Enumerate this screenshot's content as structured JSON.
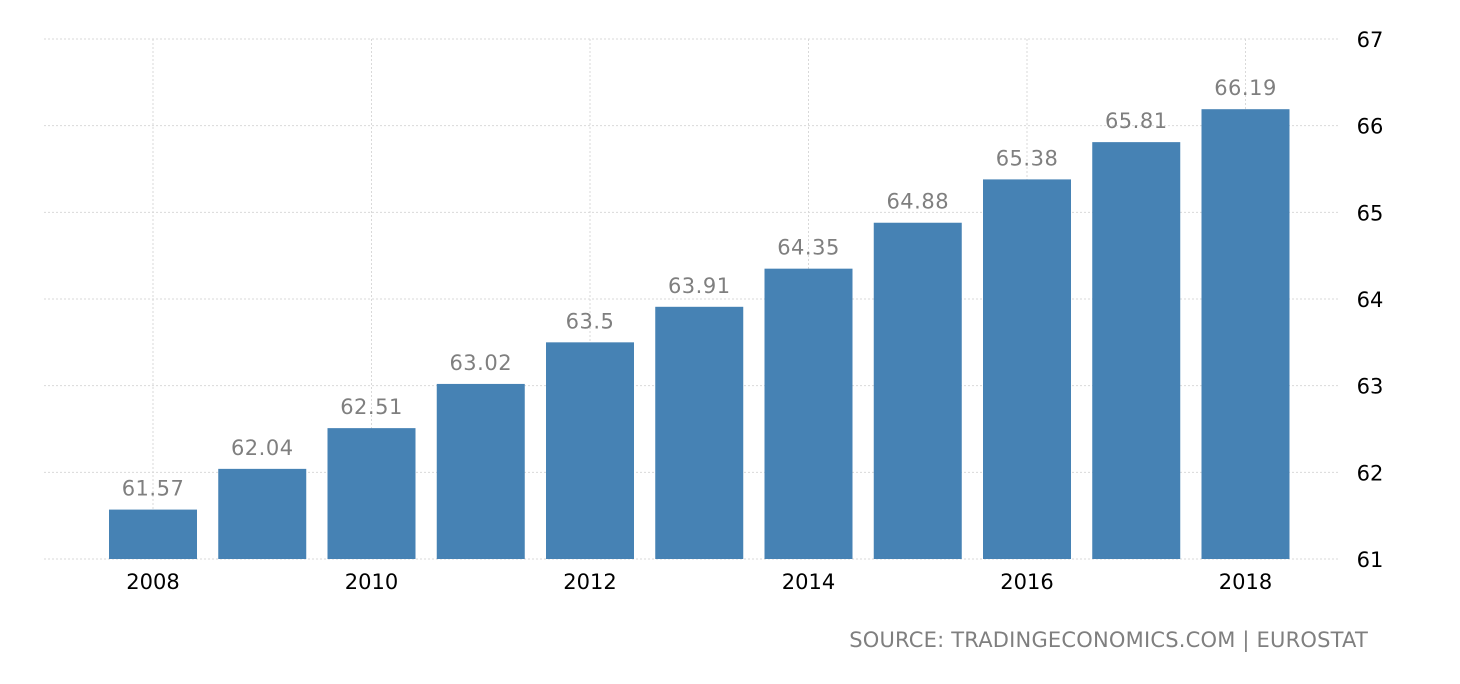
{
  "chart_data": {
    "type": "bar",
    "categories": [
      "2008",
      "2009",
      "2010",
      "2011",
      "2012",
      "2013",
      "2014",
      "2015",
      "2016",
      "2017",
      "2018"
    ],
    "values": [
      61.57,
      62.04,
      62.51,
      63.02,
      63.5,
      63.91,
      64.35,
      64.88,
      65.38,
      65.81,
      66.19
    ],
    "value_labels": [
      "61.57",
      "62.04",
      "62.51",
      "63.02",
      "63.5",
      "63.91",
      "64.35",
      "64.88",
      "65.38",
      "65.81",
      "66.19"
    ],
    "x_tick_labels": [
      "2008",
      "2010",
      "2012",
      "2014",
      "2016",
      "2018"
    ],
    "y_tick_labels": [
      "61",
      "62",
      "63",
      "64",
      "65",
      "66",
      "67"
    ],
    "ylim": [
      61,
      67
    ],
    "y_axis_side": "right",
    "grid": true,
    "title": "",
    "xlabel": "",
    "ylabel": "",
    "colors": {
      "bar": "#4682b4",
      "value_label": "#7f7f7f",
      "tick_label": "#000000",
      "grid": "#d9d9d9"
    }
  },
  "source": {
    "text": "SOURCE: TRADINGECONOMICS.COM | EUROSTAT"
  }
}
